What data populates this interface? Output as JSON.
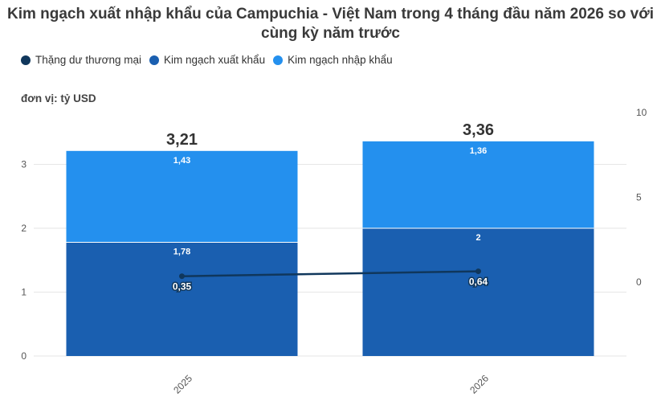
{
  "title_line1": "Kim ngạch xuất nhập khẩu của Campuchia - Việt Nam trong 4 tháng đầu năm 2026 so với",
  "title_line2": "cùng kỳ năm trước",
  "unit_label": "đơn vị: tỷ USD",
  "legend": [
    {
      "label": "Thặng dư thương mại",
      "color": "#10375c"
    },
    {
      "label": "Kim ngạch xuất khẩu",
      "color": "#1a5fb0"
    },
    {
      "label": "Kim ngạch nhập khẩu",
      "color": "#2490ee"
    }
  ],
  "chart_data": {
    "type": "bar",
    "stacked": true,
    "categories": [
      "2025",
      "2026"
    ],
    "series": [
      {
        "name": "Kim ngạch xuất khẩu",
        "values": [
          1.78,
          2
        ],
        "labels": [
          "1,78",
          "2"
        ],
        "color": "#1a5fb0"
      },
      {
        "name": "Kim ngạch nhập khẩu",
        "values": [
          1.43,
          1.36
        ],
        "labels": [
          "1,43",
          "1,36"
        ],
        "color": "#2490ee"
      }
    ],
    "totals": [
      3.21,
      3.36
    ],
    "total_labels": [
      "3,21",
      "3,36"
    ],
    "line_series": {
      "name": "Thặng dư thương mại",
      "values": [
        0.35,
        0.64
      ],
      "labels": [
        "0,35",
        "0,64"
      ],
      "color": "#10375c",
      "axis": "right"
    },
    "left_axis": {
      "ylim": [
        0,
        3.5
      ],
      "ticks": [
        0,
        1,
        2,
        3
      ]
    },
    "right_axis": {
      "ylim": [
        -4.35,
        9.85
      ],
      "ticks": [
        0,
        5,
        10
      ]
    },
    "x_tick_rotation": -45,
    "grid": true,
    "legend_position": "top-left"
  }
}
